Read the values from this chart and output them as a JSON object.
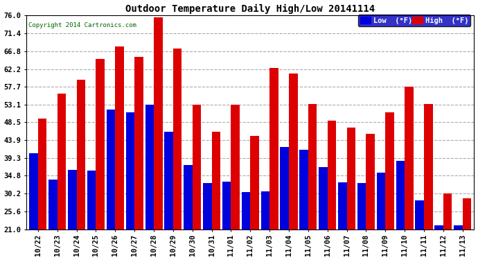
{
  "title": "Outdoor Temperature Daily High/Low 20141114",
  "copyright": "Copyright 2014 Cartronics.com",
  "legend_low": "Low  (°F)",
  "legend_high": "High  (°F)",
  "low_color": "#0000dd",
  "high_color": "#dd0000",
  "bg_color": "#ffffff",
  "plot_bg_color": "#ffffff",
  "grid_color": "#aaaaaa",
  "yticks": [
    21.0,
    25.6,
    30.2,
    34.8,
    39.3,
    43.9,
    48.5,
    53.1,
    57.7,
    62.2,
    66.8,
    71.4,
    76.0
  ],
  "ymin": 21.0,
  "ymax": 76.0,
  "categories": [
    "10/22",
    "10/23",
    "10/24",
    "10/25",
    "10/26",
    "10/27",
    "10/28",
    "10/29",
    "10/30",
    "10/31",
    "11/01",
    "11/02",
    "11/03",
    "11/04",
    "11/05",
    "11/06",
    "11/07",
    "11/08",
    "11/09",
    "11/10",
    "11/11",
    "11/12",
    "11/13"
  ],
  "lows": [
    40.5,
    33.8,
    36.2,
    36.0,
    51.8,
    51.0,
    53.1,
    46.0,
    37.5,
    32.9,
    33.2,
    30.5,
    30.8,
    42.2,
    41.5,
    37.0,
    33.0,
    32.9,
    35.5,
    38.5,
    28.5,
    22.0,
    22.0
  ],
  "highs": [
    49.5,
    55.8,
    59.5,
    64.8,
    68.0,
    65.3,
    75.5,
    67.5,
    53.0,
    46.0,
    53.1,
    45.0,
    62.5,
    61.0,
    53.2,
    49.0,
    47.2,
    45.5,
    51.0,
    57.7,
    53.2,
    30.2,
    28.9
  ]
}
